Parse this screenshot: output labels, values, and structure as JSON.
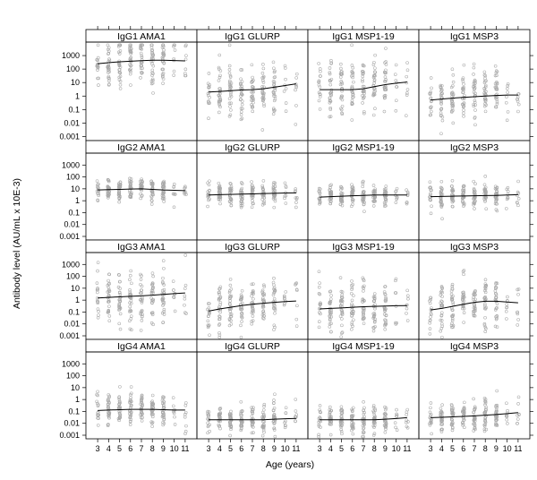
{
  "chart_data": {
    "type": "scatter",
    "layout": "4 rows x 4 columns of panels (IgG subclass by antigen)",
    "xlabel": "Age (years)",
    "ylabel": "Antibody level (AU/mL x 10E-3)",
    "x_ticks": [
      3,
      4,
      5,
      6,
      7,
      8,
      9,
      10,
      11
    ],
    "x_range": [
      2.5,
      11.5
    ],
    "y_scale": "log10",
    "y_ticks": [
      0.001,
      0.01,
      0.1,
      1,
      10,
      100,
      1000
    ],
    "y_tick_labels": [
      "0.001",
      "0.01",
      "0.1",
      "1",
      "10",
      "100",
      "1000"
    ],
    "y_range": [
      0.0005,
      10000
    ],
    "grid": false,
    "point_color": "#a8a8a8",
    "line_color": "#000000",
    "panels": [
      {
        "title": "IgG1 AMA1",
        "trend": [
          [
            3,
            250
          ],
          [
            4,
            300
          ],
          [
            5,
            350
          ],
          [
            6,
            380
          ],
          [
            7,
            420
          ],
          [
            8,
            450
          ],
          [
            9,
            450
          ],
          [
            10,
            430
          ],
          [
            11,
            400
          ]
        ],
        "spread": [
          200,
          1.0
        ]
      },
      {
        "title": "IgG1 GLURP",
        "trend": [
          [
            3,
            2
          ],
          [
            4,
            2.2
          ],
          [
            5,
            2.5
          ],
          [
            6,
            2.8
          ],
          [
            7,
            3
          ],
          [
            8,
            3.5
          ],
          [
            9,
            4.5
          ],
          [
            10,
            6
          ],
          [
            11,
            8
          ]
        ],
        "spread": [
          2,
          0.9
        ]
      },
      {
        "title": "IgG1 MSP1-19",
        "trend": [
          [
            3,
            3
          ],
          [
            4,
            3
          ],
          [
            5,
            3
          ],
          [
            6,
            3
          ],
          [
            7,
            3.5
          ],
          [
            8,
            5
          ],
          [
            9,
            7
          ],
          [
            10,
            9
          ],
          [
            11,
            11
          ]
        ],
        "spread": [
          3,
          1.1
        ]
      },
      {
        "title": "IgG1 MSP3",
        "trend": [
          [
            3,
            0.5
          ],
          [
            4,
            0.6
          ],
          [
            5,
            0.7
          ],
          [
            6,
            0.8
          ],
          [
            7,
            0.9
          ],
          [
            8,
            1
          ],
          [
            9,
            1.1
          ],
          [
            10,
            1.2
          ],
          [
            11,
            1.2
          ]
        ],
        "spread": [
          0.6,
          0.9
        ]
      },
      {
        "title": "IgG2 AMA1",
        "trend": [
          [
            3,
            8
          ],
          [
            4,
            8.5
          ],
          [
            5,
            9
          ],
          [
            6,
            9.5
          ],
          [
            7,
            10
          ],
          [
            8,
            9
          ],
          [
            9,
            8
          ],
          [
            10,
            7.5
          ],
          [
            11,
            7
          ]
        ],
        "spread": [
          8,
          0.5
        ]
      },
      {
        "title": "IgG2 GLURP",
        "trend": [
          [
            3,
            3
          ],
          [
            4,
            3.2
          ],
          [
            5,
            3.4
          ],
          [
            6,
            3.6
          ],
          [
            7,
            3.8
          ],
          [
            8,
            4
          ],
          [
            9,
            4.2
          ],
          [
            10,
            4.5
          ],
          [
            11,
            4.6
          ]
        ],
        "spread": [
          3.5,
          0.5
        ]
      },
      {
        "title": "IgG2 MSP1-19",
        "trend": [
          [
            3,
            2
          ],
          [
            4,
            2.2
          ],
          [
            5,
            2.4
          ],
          [
            6,
            2.6
          ],
          [
            7,
            2.8
          ],
          [
            8,
            3
          ],
          [
            9,
            3
          ],
          [
            10,
            3
          ],
          [
            11,
            3
          ]
        ],
        "spread": [
          2.5,
          0.45
        ]
      },
      {
        "title": "IgG2 MSP3",
        "trend": [
          [
            3,
            2.2
          ],
          [
            4,
            2.3
          ],
          [
            5,
            2.4
          ],
          [
            6,
            2.5
          ],
          [
            7,
            2.6
          ],
          [
            8,
            2.7
          ],
          [
            9,
            2.8
          ],
          [
            10,
            3
          ],
          [
            11,
            3.2
          ]
        ],
        "spread": [
          2.5,
          0.5
        ]
      },
      {
        "title": "IgG3 AMA1",
        "trend": [
          [
            3,
            1.5
          ],
          [
            4,
            1.7
          ],
          [
            5,
            1.9
          ],
          [
            6,
            2.1
          ],
          [
            7,
            2.3
          ],
          [
            8,
            2.6
          ],
          [
            9,
            3
          ],
          [
            10,
            3.5
          ],
          [
            11,
            4
          ]
        ],
        "spread": [
          2,
          1.1
        ]
      },
      {
        "title": "IgG3 GLURP",
        "trend": [
          [
            3,
            0.12
          ],
          [
            4,
            0.18
          ],
          [
            5,
            0.25
          ],
          [
            6,
            0.35
          ],
          [
            7,
            0.45
          ],
          [
            8,
            0.55
          ],
          [
            9,
            0.65
          ],
          [
            10,
            0.75
          ],
          [
            11,
            0.85
          ]
        ],
        "spread": [
          0.4,
          0.9
        ]
      },
      {
        "title": "IgG3 MSP1-19",
        "trend": [
          [
            3,
            0.18
          ],
          [
            4,
            0.2
          ],
          [
            5,
            0.22
          ],
          [
            6,
            0.25
          ],
          [
            7,
            0.28
          ],
          [
            8,
            0.3
          ],
          [
            9,
            0.32
          ],
          [
            10,
            0.34
          ],
          [
            11,
            0.35
          ]
        ],
        "spread": [
          0.3,
          1.1
        ]
      },
      {
        "title": "IgG3 MSP3",
        "trend": [
          [
            3,
            0.15
          ],
          [
            4,
            0.2
          ],
          [
            5,
            0.3
          ],
          [
            6,
            0.45
          ],
          [
            7,
            0.65
          ],
          [
            8,
            0.8
          ],
          [
            9,
            0.8
          ],
          [
            10,
            0.7
          ],
          [
            11,
            0.6
          ]
        ],
        "spread": [
          0.5,
          1.0
        ]
      },
      {
        "title": "IgG4 AMA1",
        "trend": [
          [
            3,
            0.12
          ],
          [
            4,
            0.13
          ],
          [
            5,
            0.14
          ],
          [
            6,
            0.15
          ],
          [
            7,
            0.15
          ],
          [
            8,
            0.15
          ],
          [
            9,
            0.14
          ],
          [
            10,
            0.13
          ],
          [
            11,
            0.13
          ]
        ],
        "spread": [
          0.15,
          0.75
        ]
      },
      {
        "title": "IgG4 GLURP",
        "trend": [
          [
            3,
            0.02
          ],
          [
            4,
            0.02
          ],
          [
            5,
            0.02
          ],
          [
            6,
            0.02
          ],
          [
            7,
            0.02
          ],
          [
            8,
            0.02
          ],
          [
            9,
            0.022
          ],
          [
            10,
            0.024
          ],
          [
            11,
            0.026
          ]
        ],
        "spread": [
          0.02,
          0.55
        ]
      },
      {
        "title": "IgG4 MSP1-19",
        "trend": [
          [
            3,
            0.02
          ],
          [
            4,
            0.02
          ],
          [
            5,
            0.02
          ],
          [
            6,
            0.02
          ],
          [
            7,
            0.02
          ],
          [
            8,
            0.02
          ],
          [
            9,
            0.022
          ],
          [
            10,
            0.025
          ],
          [
            11,
            0.03
          ]
        ],
        "spread": [
          0.02,
          0.6
        ]
      },
      {
        "title": "IgG4 MSP3",
        "trend": [
          [
            3,
            0.03
          ],
          [
            4,
            0.032
          ],
          [
            5,
            0.035
          ],
          [
            6,
            0.038
          ],
          [
            7,
            0.042
          ],
          [
            8,
            0.048
          ],
          [
            9,
            0.055
          ],
          [
            10,
            0.065
          ],
          [
            11,
            0.08
          ]
        ],
        "spread": [
          0.04,
          0.6
        ]
      }
    ]
  }
}
